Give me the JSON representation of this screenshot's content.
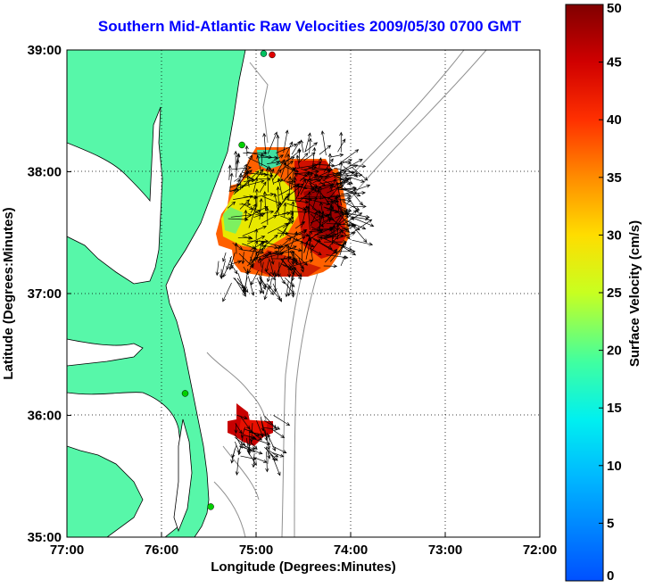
{
  "title": "Southern Mid-Atlantic Raw Velocities 2009/05/30 0700 GMT",
  "map": {
    "xlabel": "Longitude (Degrees:Minutes)",
    "ylabel": "Latitude (Degrees:Minutes)",
    "x_ticks": [
      "77:00",
      "76:00",
      "75:00",
      "74:00",
      "73:00",
      "72:00"
    ],
    "y_ticks": [
      "39:00",
      "38:00",
      "37:00",
      "36:00",
      "35:00"
    ],
    "lon_range": [
      -77,
      -72
    ],
    "lat_range": [
      35,
      39
    ],
    "land_color": "#57f7a9",
    "ocean_color": "#ffffff",
    "grid": "dotted",
    "stations": [
      {
        "lon": -74.83,
        "lat": 38.96,
        "color": "#e00000"
      },
      {
        "lon": -74.92,
        "lat": 38.97,
        "color": "#00c060"
      },
      {
        "lon": -75.15,
        "lat": 38.22,
        "color": "#00d000"
      },
      {
        "lon": -75.75,
        "lat": 36.18,
        "color": "#00d000"
      },
      {
        "lon": -75.48,
        "lat": 35.25,
        "color": "#00d000"
      }
    ]
  },
  "colorbar": {
    "label": "Surface Velocity (cm/s)",
    "ticks": [
      "0",
      "5",
      "10",
      "15",
      "20",
      "25",
      "30",
      "35",
      "40",
      "45",
      "50"
    ],
    "min": 0,
    "max": 50,
    "colormap": "jet"
  }
}
